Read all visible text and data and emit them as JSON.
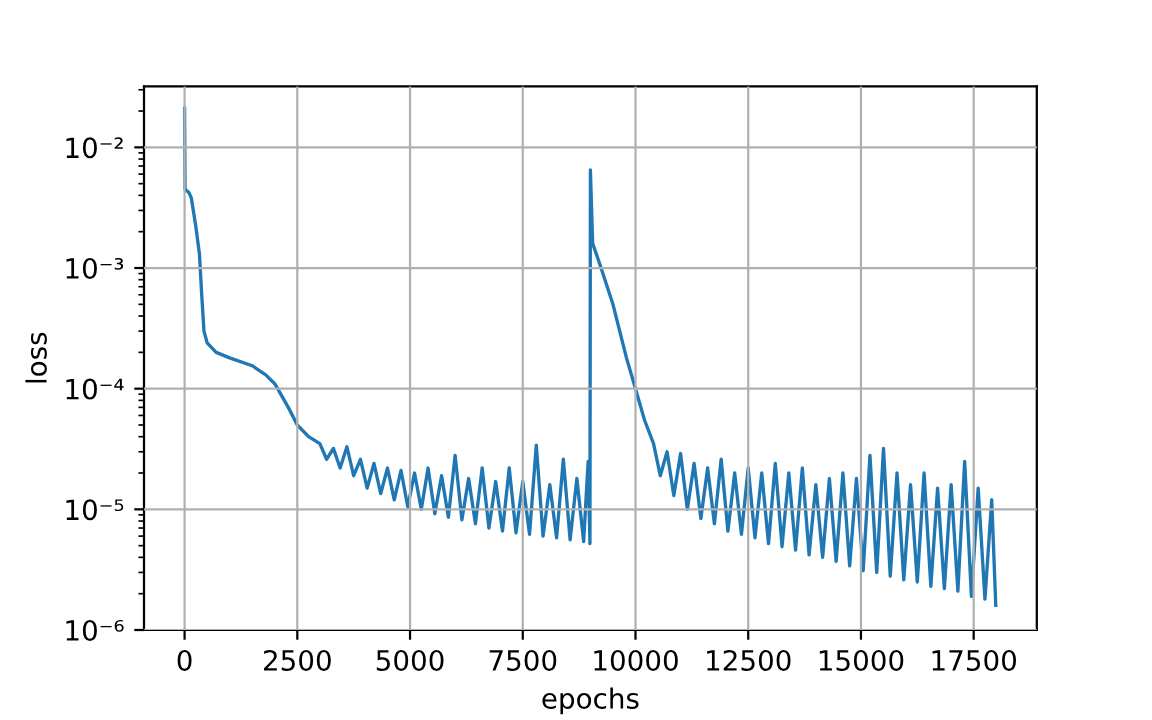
{
  "chart_data": {
    "type": "line",
    "xlabel": "epochs",
    "ylabel": "loss",
    "log": "y",
    "grid": true,
    "xlim": [
      -900,
      18900
    ],
    "xticks": [
      0,
      2500,
      5000,
      7500,
      10000,
      12500,
      15000,
      17500
    ],
    "ylim": [
      1e-06,
      0.032
    ],
    "yticks": [
      {
        "value": 1e-06,
        "label": "10⁻⁶"
      },
      {
        "value": 1e-05,
        "label": "10⁻⁵"
      },
      {
        "value": 0.0001,
        "label": "10⁻⁴"
      },
      {
        "value": 0.001,
        "label": "10⁻³"
      },
      {
        "value": 0.01,
        "label": "10⁻²"
      }
    ],
    "series": [
      {
        "color": "#1f77b4",
        "x": [
          0,
          10,
          100,
          150,
          250,
          330,
          380,
          430,
          500,
          700,
          1000,
          1500,
          1800,
          2000,
          2300,
          2500,
          2750,
          3000,
          3150,
          3300,
          3450,
          3600,
          3750,
          3900,
          4050,
          4200,
          4350,
          4500,
          4650,
          4800,
          4950,
          5100,
          5250,
          5400,
          5550,
          5700,
          5850,
          6000,
          6150,
          6300,
          6450,
          6600,
          6750,
          6900,
          7050,
          7200,
          7350,
          7500,
          7650,
          7800,
          7950,
          8100,
          8250,
          8400,
          8550,
          8700,
          8850,
          8950,
          8990,
          9000,
          9050,
          9200,
          9500,
          9800,
          10000,
          10200,
          10400,
          10550,
          10700,
          10850,
          11000,
          11150,
          11300,
          11450,
          11600,
          11750,
          11900,
          12050,
          12200,
          12350,
          12500,
          12650,
          12800,
          12950,
          13100,
          13250,
          13400,
          13550,
          13700,
          13850,
          14000,
          14150,
          14300,
          14450,
          14600,
          14750,
          14900,
          15050,
          15200,
          15350,
          15500,
          15650,
          15800,
          15950,
          16100,
          16250,
          16400,
          16550,
          16700,
          16850,
          17000,
          17150,
          17300,
          17450,
          17600,
          17750,
          17900,
          17990
        ],
        "values": [
          0.021,
          0.0045,
          0.0042,
          0.0038,
          0.0022,
          0.0013,
          0.0006,
          0.0003,
          0.00024,
          0.0002,
          0.00018,
          0.000155,
          0.00013,
          0.00011,
          7e-05,
          5e-05,
          4e-05,
          3.5e-05,
          2.6e-05,
          3.2e-05,
          2.2e-05,
          3.3e-05,
          1.9e-05,
          2.6e-05,
          1.5e-05,
          2.4e-05,
          1.35e-05,
          2.2e-05,
          1.2e-05,
          2.1e-05,
          1.05e-05,
          2e-05,
          1e-05,
          2.2e-05,
          9.2e-06,
          1.9e-05,
          8.6e-06,
          2.8e-05,
          8.2e-06,
          1.8e-05,
          7.6e-06,
          2.2e-05,
          7e-06,
          1.7e-05,
          6.6e-06,
          2.2e-05,
          6.4e-06,
          1.7e-05,
          6.2e-06,
          3.4e-05,
          6e-06,
          1.6e-05,
          5.8e-06,
          2.6e-05,
          5.6e-06,
          1.8e-05,
          5.4e-06,
          2.5e-05,
          5.2e-06,
          0.0065,
          0.0016,
          0.0011,
          0.0005,
          0.00018,
          0.0001,
          5.5e-05,
          3.5e-05,
          1.9e-05,
          3e-05,
          1.3e-05,
          2.9e-05,
          1e-05,
          2.4e-05,
          8.4e-06,
          2.2e-05,
          7.6e-06,
          2.6e-05,
          6.6e-06,
          2e-05,
          6.2e-06,
          2.2e-05,
          5.8e-06,
          2e-05,
          5.2e-06,
          2.4e-05,
          4.9e-06,
          2e-05,
          4.6e-06,
          2.2e-05,
          4.2e-06,
          1.6e-05,
          4e-06,
          1.8e-05,
          3.7e-06,
          2e-05,
          3.4e-06,
          1.8e-05,
          3.1e-06,
          2.8e-05,
          3e-06,
          3.2e-05,
          2.8e-06,
          2e-05,
          2.6e-06,
          1.6e-05,
          2.5e-06,
          2e-05,
          2.3e-06,
          1.5e-05,
          2.2e-06,
          1.6e-05,
          2.1e-06,
          2.5e-05,
          1.9e-06,
          1.5e-05,
          1.8e-06,
          1.2e-05,
          1.6e-06
        ]
      }
    ]
  }
}
